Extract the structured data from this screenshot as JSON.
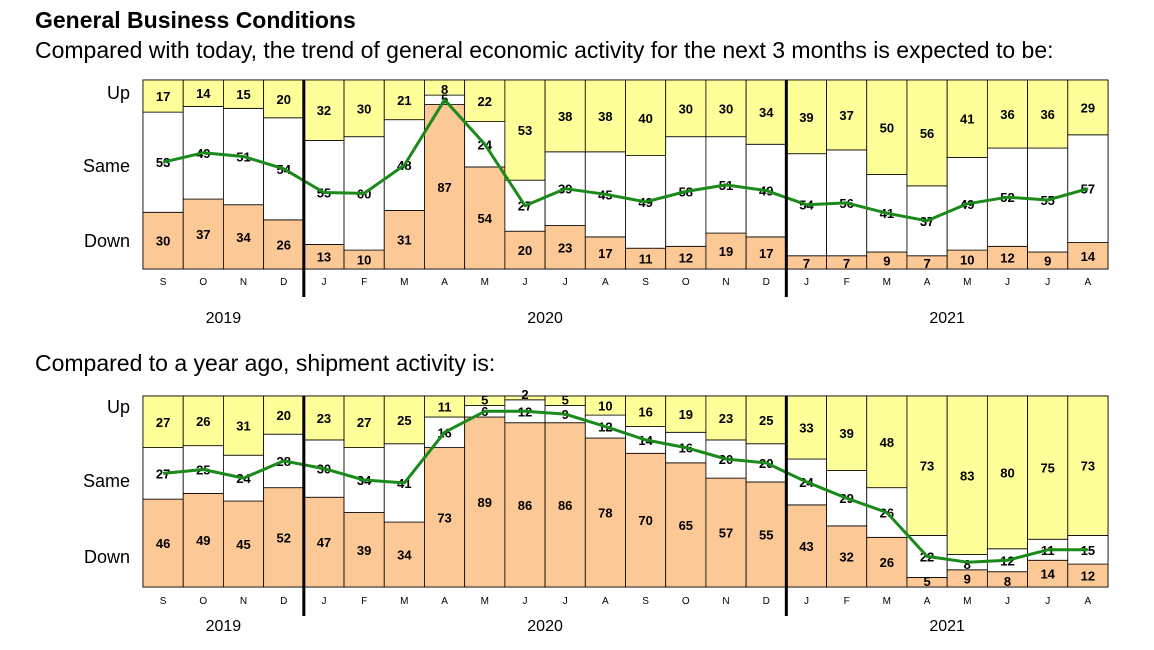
{
  "title": "General Business Conditions",
  "chart_data": [
    {
      "type": "bar",
      "stacked": true,
      "subtitle": "Compared with today, the trend of general economic activity for the next 3 months is expected to be:",
      "ylabels": [
        "Up",
        "Same",
        "Down"
      ],
      "categories": [
        "S",
        "O",
        "N",
        "D",
        "J",
        "F",
        "M",
        "A",
        "M",
        "J",
        "J",
        "A",
        "S",
        "O",
        "N",
        "D",
        "J",
        "F",
        "M",
        "A",
        "M",
        "J",
        "J",
        "A"
      ],
      "years": [
        {
          "label": "2019",
          "start": 0,
          "end": 3
        },
        {
          "label": "2020",
          "start": 4,
          "end": 15
        },
        {
          "label": "2021",
          "start": 16,
          "end": 23
        }
      ],
      "series": [
        {
          "name": "Down",
          "color": "#fcc896",
          "values": [
            30,
            37,
            34,
            26,
            13,
            10,
            31,
            87,
            54,
            20,
            23,
            17,
            11,
            12,
            19,
            17,
            7,
            7,
            9,
            7,
            10,
            12,
            9,
            14
          ]
        },
        {
          "name": "Same",
          "color": "#ffffff",
          "values": [
            53,
            49,
            51,
            54,
            55,
            60,
            48,
            5,
            24,
            27,
            39,
            45,
            49,
            58,
            51,
            49,
            54,
            56,
            41,
            37,
            49,
            52,
            55,
            57
          ]
        },
        {
          "name": "Up",
          "color": "#ffff99",
          "values": [
            17,
            14,
            15,
            20,
            32,
            30,
            21,
            8,
            22,
            53,
            38,
            38,
            40,
            30,
            30,
            34,
            39,
            37,
            50,
            56,
            41,
            36,
            36,
            29
          ]
        }
      ],
      "line_color": "#1a8a1a",
      "ylim": [
        0,
        100
      ]
    },
    {
      "type": "bar",
      "stacked": true,
      "subtitle": "Compared to a year ago, shipment activity is:",
      "ylabels": [
        "Up",
        "Same",
        "Down"
      ],
      "categories": [
        "S",
        "O",
        "N",
        "D",
        "J",
        "F",
        "M",
        "A",
        "M",
        "J",
        "J",
        "A",
        "S",
        "O",
        "N",
        "D",
        "J",
        "F",
        "M",
        "A",
        "M",
        "J",
        "J",
        "A"
      ],
      "years": [
        {
          "label": "2019",
          "start": 0,
          "end": 3
        },
        {
          "label": "2020",
          "start": 4,
          "end": 15
        },
        {
          "label": "2021",
          "start": 16,
          "end": 23
        }
      ],
      "series": [
        {
          "name": "Down",
          "color": "#fcc896",
          "values": [
            46,
            49,
            45,
            52,
            47,
            39,
            34,
            73,
            89,
            86,
            86,
            78,
            70,
            65,
            57,
            55,
            43,
            32,
            26,
            5,
            9,
            8,
            14,
            12
          ]
        },
        {
          "name": "Same",
          "color": "#ffffff",
          "values": [
            27,
            25,
            24,
            28,
            30,
            34,
            41,
            16,
            6,
            12,
            9,
            12,
            14,
            16,
            20,
            20,
            24,
            29,
            26,
            22,
            8,
            12,
            11,
            15
          ]
        },
        {
          "name": "Up",
          "color": "#ffff99",
          "values": [
            27,
            26,
            31,
            20,
            23,
            27,
            25,
            11,
            5,
            2,
            5,
            10,
            16,
            19,
            23,
            25,
            33,
            39,
            48,
            73,
            83,
            80,
            75,
            73
          ]
        }
      ],
      "line_color": "#1a8a1a",
      "ylim": [
        0,
        100
      ]
    }
  ]
}
